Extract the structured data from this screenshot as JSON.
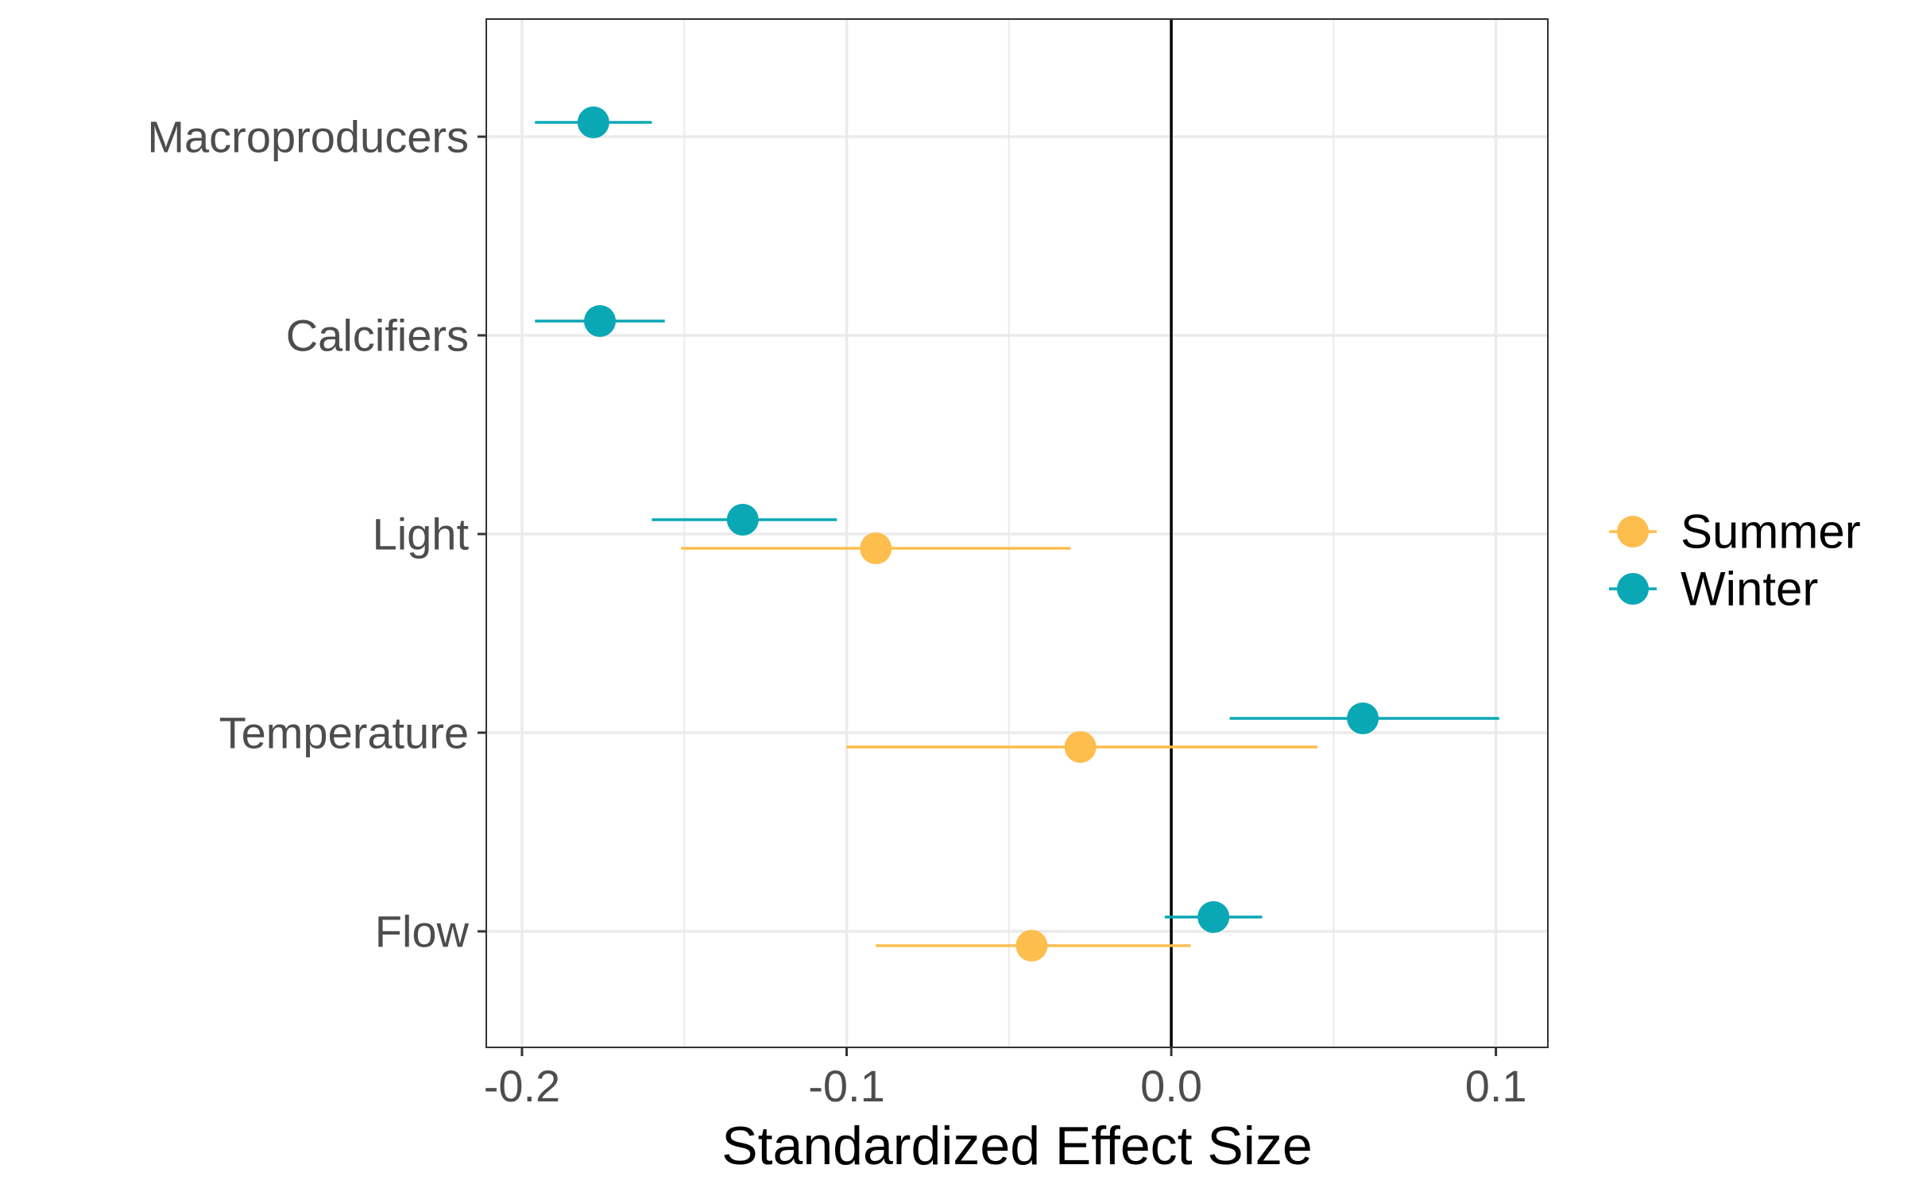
{
  "chart_data": {
    "type": "scatter",
    "subtype": "dot-and-whisker",
    "title": "",
    "xlabel": "Standardized Effect Size",
    "ylabel": "",
    "xlim": [
      -0.211,
      0.116
    ],
    "x_ticks": [
      -0.2,
      -0.1,
      0.0,
      0.1
    ],
    "x_tick_labels": [
      "-0.2",
      "-0.1",
      "0.0",
      "0.1"
    ],
    "categories": [
      "Macroproducers",
      "Calcifiers",
      "Light",
      "Temperature",
      "Flow"
    ],
    "reference_line_x": 0.0,
    "grid": true,
    "legend_position": "right",
    "series": [
      {
        "name": "Summer",
        "color": "#FDBE4E",
        "points": [
          {
            "category": "Light",
            "estimate": -0.091,
            "lower": -0.151,
            "upper": -0.031
          },
          {
            "category": "Temperature",
            "estimate": -0.028,
            "lower": -0.1,
            "upper": 0.045
          },
          {
            "category": "Flow",
            "estimate": -0.043,
            "lower": -0.091,
            "upper": 0.006
          }
        ]
      },
      {
        "name": "Winter",
        "color": "#0AA7B5",
        "points": [
          {
            "category": "Macroproducers",
            "estimate": -0.178,
            "lower": -0.196,
            "upper": -0.16
          },
          {
            "category": "Calcifiers",
            "estimate": -0.176,
            "lower": -0.196,
            "upper": -0.156
          },
          {
            "category": "Light",
            "estimate": -0.132,
            "lower": -0.16,
            "upper": -0.103
          },
          {
            "category": "Temperature",
            "estimate": 0.059,
            "lower": 0.018,
            "upper": 0.101
          },
          {
            "category": "Flow",
            "estimate": 0.013,
            "lower": -0.002,
            "upper": 0.028
          }
        ]
      }
    ]
  }
}
